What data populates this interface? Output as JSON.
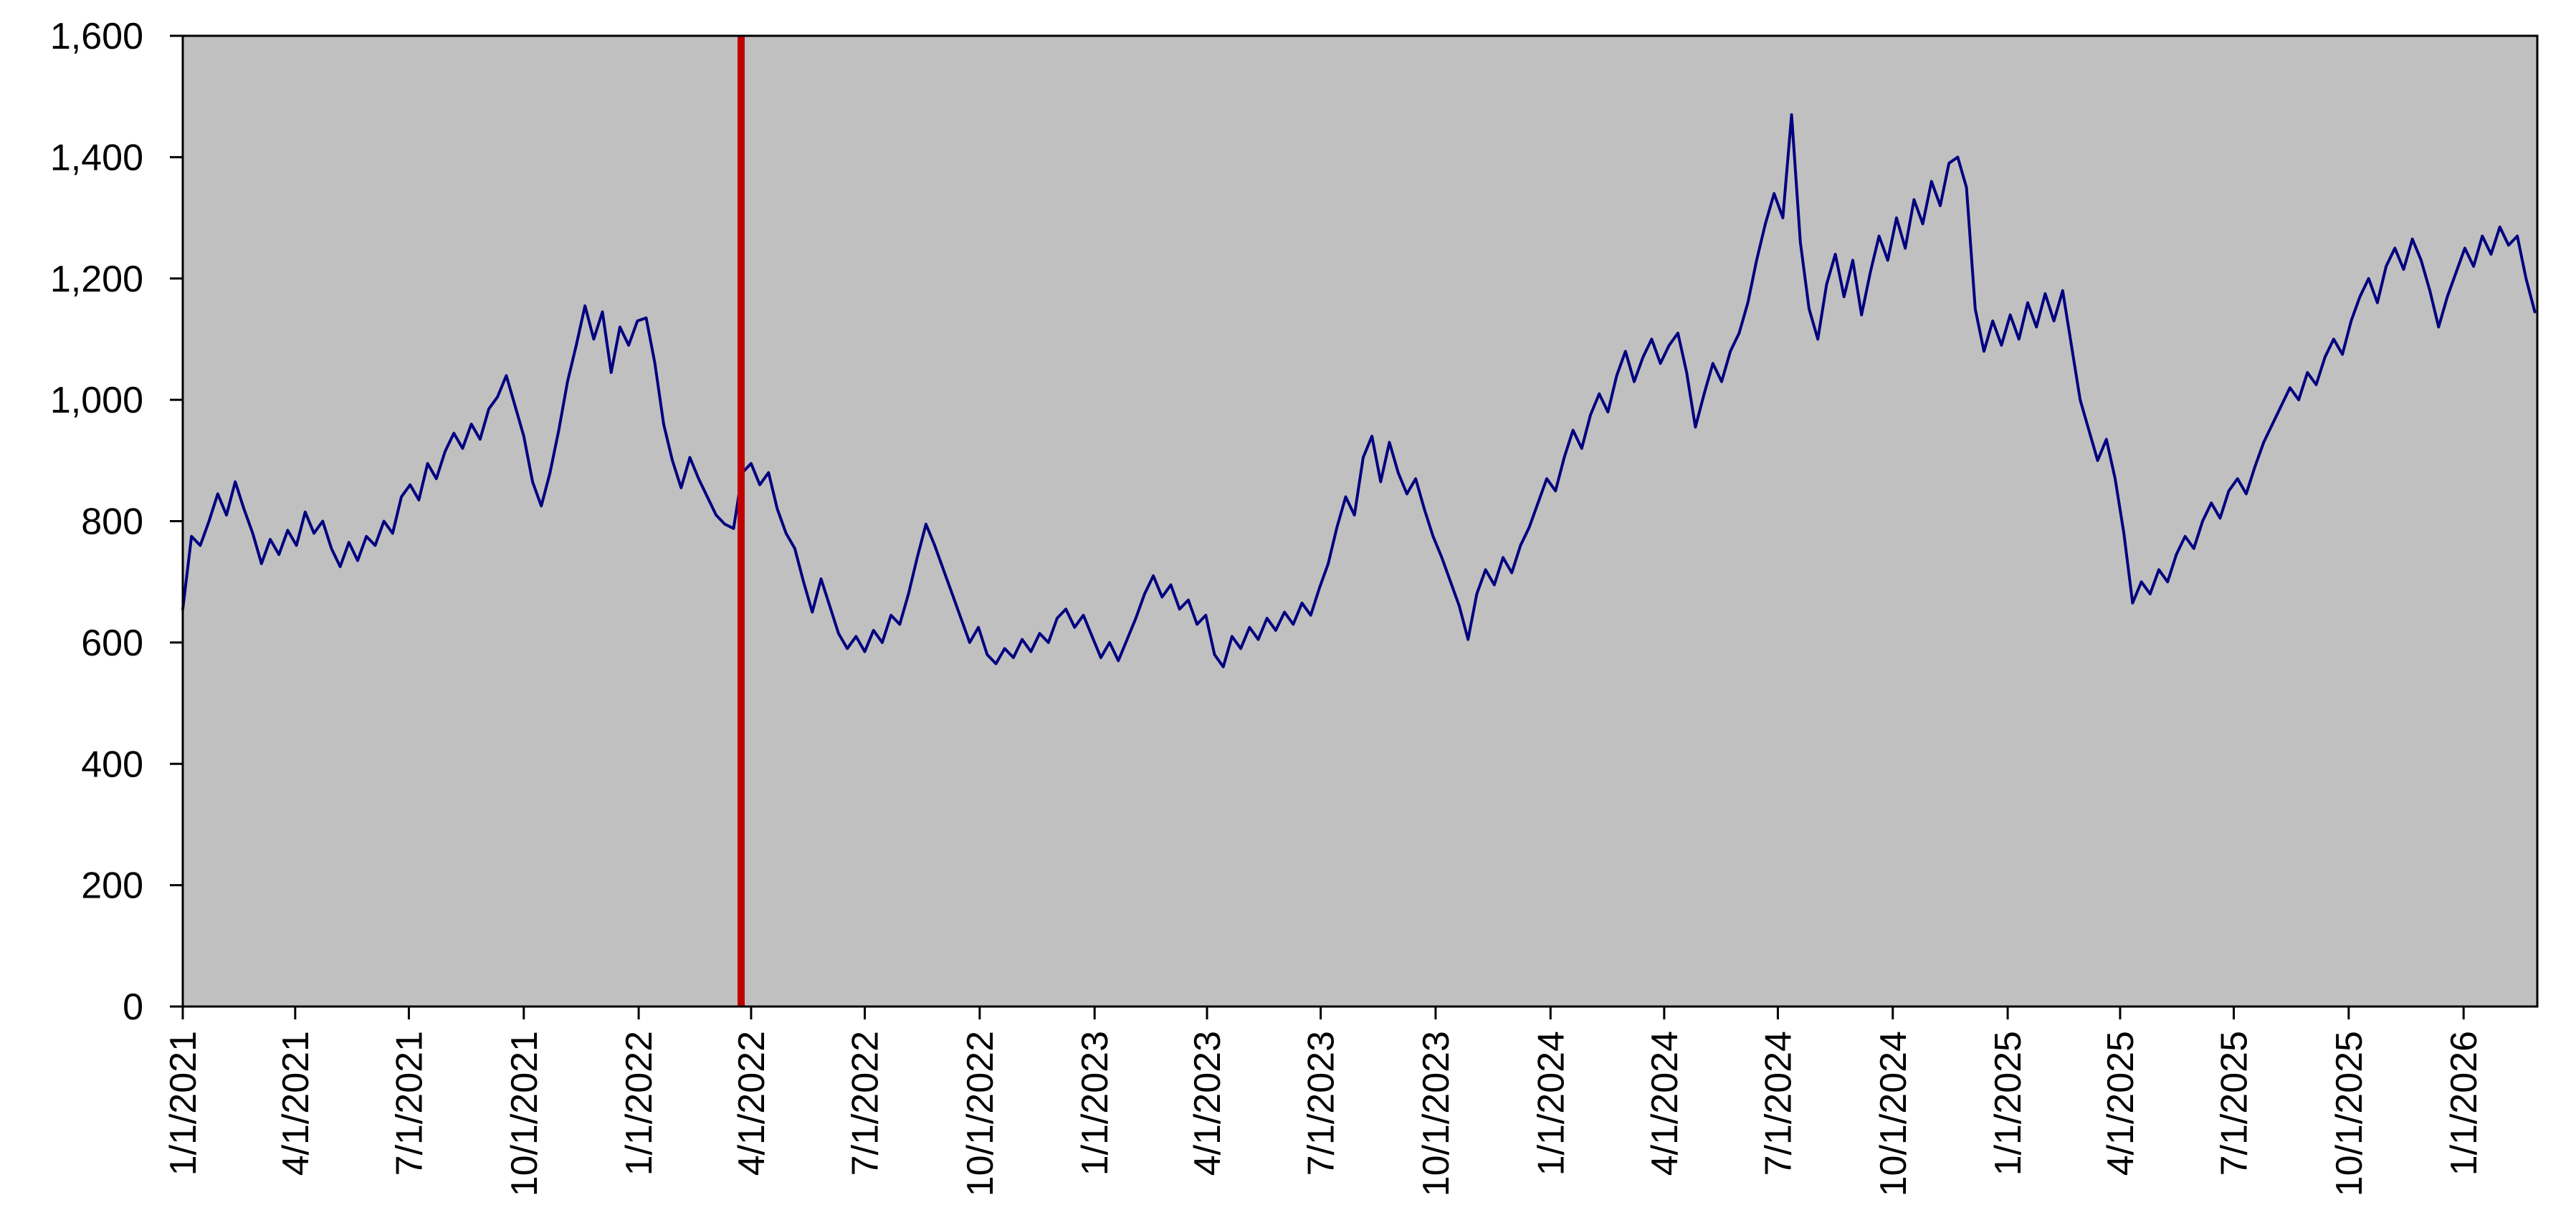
{
  "chart_data": {
    "type": "line",
    "title": "",
    "legend": "none",
    "grid": "none",
    "colors": {
      "line": "#000080",
      "event_line": "#c00000",
      "plot_background": "#c0c0c0",
      "axis": "#000000",
      "outer_background": "#ffffff"
    },
    "x_axis": {
      "start": "2021-01-01",
      "end": "2026-03-01",
      "tick_labels": [
        "1/1/2021",
        "4/1/2021",
        "7/1/2021",
        "10/1/2021",
        "1/1/2022",
        "4/1/2022",
        "7/1/2022",
        "10/1/2022",
        "1/1/2023",
        "4/1/2023",
        "7/1/2023",
        "10/1/2023",
        "1/1/2024",
        "4/1/2024",
        "7/1/2024",
        "10/1/2024",
        "1/1/2025",
        "4/1/2025",
        "7/1/2025",
        "10/1/2025",
        "1/1/2026"
      ]
    },
    "y_axis": {
      "min": 0,
      "max": 1600,
      "step": 200,
      "tick_labels": [
        "0",
        "200",
        "400",
        "600",
        "800",
        "1,000",
        "1,200",
        "1,400",
        "1,600"
      ]
    },
    "event_line": {
      "date": "2022-03-24",
      "color": "#c00000",
      "width": 10
    },
    "series": [
      {
        "name": "value",
        "start_date": "2021-01-01",
        "interval_days": 7,
        "values": [
          655,
          775,
          760,
          800,
          845,
          810,
          865,
          820,
          780,
          730,
          770,
          745,
          785,
          760,
          815,
          780,
          800,
          755,
          725,
          765,
          735,
          775,
          760,
          800,
          780,
          840,
          860,
          835,
          895,
          870,
          915,
          945,
          920,
          960,
          935,
          985,
          1005,
          1040,
          990,
          940,
          865,
          825,
          880,
          950,
          1030,
          1090,
          1155,
          1100,
          1145,
          1045,
          1120,
          1090,
          1130,
          1135,
          1060,
          960,
          900,
          855,
          905,
          870,
          840,
          810,
          795,
          788,
          880,
          895,
          860,
          880,
          820,
          780,
          755,
          700,
          650,
          705,
          660,
          615,
          590,
          610,
          585,
          620,
          600,
          645,
          630,
          680,
          740,
          795,
          760,
          720,
          680,
          640,
          600,
          625,
          580,
          565,
          590,
          575,
          605,
          585,
          615,
          600,
          640,
          655,
          625,
          645,
          610,
          575,
          600,
          570,
          605,
          640,
          680,
          710,
          675,
          695,
          655,
          670,
          630,
          645,
          580,
          560,
          610,
          590,
          625,
          605,
          640,
          620,
          650,
          630,
          665,
          645,
          690,
          730,
          790,
          840,
          810,
          905,
          940,
          865,
          930,
          880,
          845,
          870,
          820,
          775,
          740,
          700,
          660,
          605,
          680,
          720,
          695,
          740,
          715,
          760,
          790,
          830,
          870,
          850,
          905,
          950,
          920,
          975,
          1010,
          980,
          1040,
          1080,
          1030,
          1070,
          1100,
          1060,
          1090,
          1110,
          1045,
          955,
          1010,
          1060,
          1030,
          1080,
          1110,
          1160,
          1230,
          1290,
          1340,
          1300,
          1470,
          1260,
          1150,
          1100,
          1190,
          1240,
          1170,
          1230,
          1140,
          1210,
          1270,
          1230,
          1300,
          1250,
          1330,
          1290,
          1360,
          1320,
          1390,
          1400,
          1350,
          1150,
          1080,
          1130,
          1090,
          1140,
          1100,
          1160,
          1120,
          1175,
          1130,
          1180,
          1090,
          1000,
          950,
          900,
          935,
          870,
          780,
          665,
          700,
          680,
          720,
          700,
          745,
          775,
          755,
          800,
          830,
          805,
          850,
          870,
          845,
          890,
          930,
          960,
          990,
          1020,
          1000,
          1045,
          1025,
          1070,
          1100,
          1075,
          1130,
          1170,
          1200,
          1160,
          1220,
          1250,
          1215,
          1265,
          1230,
          1180,
          1120,
          1170,
          1210,
          1250,
          1220,
          1270,
          1240,
          1285,
          1255,
          1270,
          1200,
          1145
        ]
      }
    ]
  }
}
